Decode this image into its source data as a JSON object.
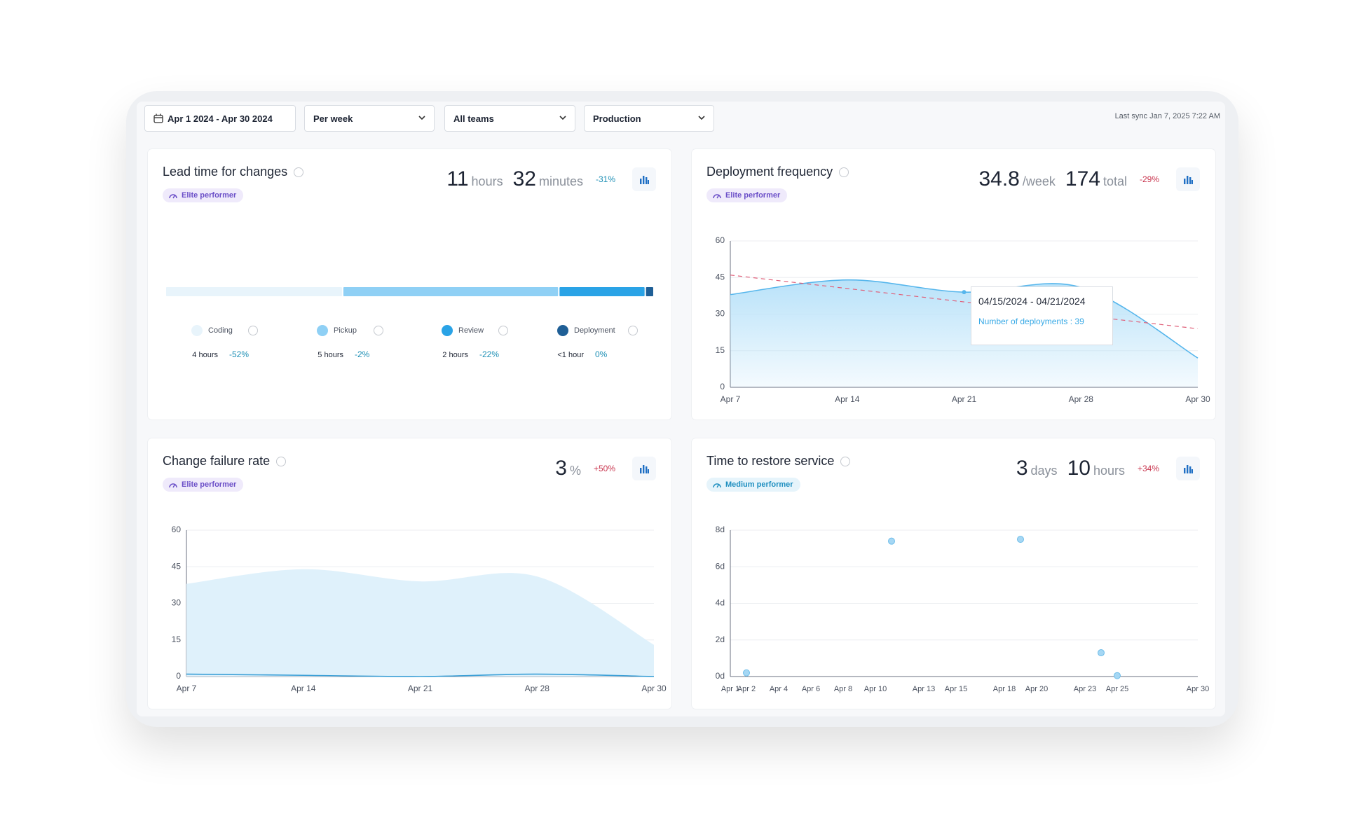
{
  "toolbar": {
    "date_range": "Apr 1 2024 - Apr 30 2024",
    "filters": [
      "Per week",
      "All teams",
      "Production"
    ],
    "last_sync": "Last sync Jan 7, 2025 7:22 AM"
  },
  "panels": [
    {
      "title": "Lead time for changes",
      "badge": "Elite performer",
      "badge_color": "#6b4fc8",
      "badge_bg": "#efeafb",
      "stats": [
        {
          "value": "11",
          "unit": "hours"
        },
        {
          "value": "32",
          "unit": "minutes"
        }
      ],
      "change": "-31%",
      "change_color": "#1d8fb5",
      "chart_data": {
        "type": "stacked-bar",
        "series": [
          {
            "name": "Coding",
            "color": "#e8f4fb",
            "values": [
              4.1
            ],
            "value_labels": [
              "4 hours"
            ],
            "change": "-52%"
          },
          {
            "name": "Pickup",
            "color": "#8fd0f5",
            "values": [
              5
            ],
            "value_labels": [
              "5 hours"
            ],
            "change": "-2%"
          },
          {
            "name": "Review",
            "color": "#2aa3e6",
            "values": [
              2
            ],
            "value_labels": [
              "2 hours"
            ],
            "change": "-22%"
          },
          {
            "name": "Deployment",
            "color": "#1f5f96",
            "values": [
              0.2
            ],
            "value_labels": [
              "<1 hour"
            ],
            "change": "0%"
          }
        ]
      }
    },
    {
      "title": "Deployment frequency",
      "badge": "Elite performer",
      "badge_color": "#6b4fc8",
      "badge_bg": "#efeafb",
      "stats": [
        {
          "value": "34.8",
          "unit": "/week"
        },
        {
          "value": "174",
          "unit": "total"
        }
      ],
      "change": "-29%",
      "change_color": "#c9364f",
      "chart_data": {
        "type": "area",
        "categories": [
          "Apr 7",
          "Apr 14",
          "Apr 21",
          "Apr 28",
          "Apr 30"
        ],
        "series": [
          {
            "color": "#56b6ec",
            "fill": "#b9e2f9",
            "values": [
              38,
              44,
              39,
              41,
              12
            ]
          }
        ],
        "trend": {
          "color": "#e0607a",
          "values": [
            46,
            24
          ]
        },
        "ylim": [
          0,
          60
        ],
        "yticks": [
          0,
          15,
          30,
          45,
          60
        ],
        "grid": true,
        "tooltip": {
          "title": "04/15/2024 - 04/21/2024",
          "text": "Number of deployments : 39"
        }
      }
    },
    {
      "title": "Change failure rate",
      "badge": "Elite performer",
      "badge_color": "#6b4fc8",
      "badge_bg": "#efeafb",
      "stats": [
        {
          "value": "3",
          "unit": "%"
        }
      ],
      "change": "+50%",
      "change_color": "#c9364f",
      "chart_data": {
        "type": "area",
        "categories": [
          "Apr 7",
          "Apr 14",
          "Apr 21",
          "Apr 28",
          "Apr 30"
        ],
        "series": [
          {
            "fill": "#dff1fb",
            "values": [
              38,
              44,
              39,
              41,
              13
            ]
          },
          {
            "color": "#3a9fd6",
            "values": [
              1,
              0.5,
              0,
              1,
              0
            ]
          }
        ],
        "ylim": [
          0,
          60
        ],
        "yticks": [
          0,
          15,
          30,
          45,
          60
        ],
        "grid": true
      }
    },
    {
      "title": "Time to restore service",
      "badge": "Medium performer",
      "badge_color": "#1f8fc0",
      "badge_bg": "#e6f4fb",
      "stats": [
        {
          "value": "3",
          "unit": "days"
        },
        {
          "value": "10",
          "unit": "hours"
        }
      ],
      "change": "+34%",
      "change_color": "#c9364f",
      "chart_data": {
        "type": "scatter",
        "color": "#a5d7f4",
        "x": [
          2,
          11,
          19,
          24,
          25
        ],
        "values": [
          0.2,
          7.4,
          7.5,
          1.3,
          0.05
        ],
        "xlim": [
          1,
          30
        ],
        "xticks": [
          {
            "value": 1,
            "label": "Apr 1"
          },
          {
            "value": 2,
            "label": "Apr 2"
          },
          {
            "value": 4,
            "label": "Apr 4"
          },
          {
            "value": 6,
            "label": "Apr 6"
          },
          {
            "value": 8,
            "label": "Apr 8"
          },
          {
            "value": 10,
            "label": "Apr 10"
          },
          {
            "value": 13,
            "label": "Apr 13"
          },
          {
            "value": 15,
            "label": "Apr 15"
          },
          {
            "value": 18,
            "label": "Apr 18"
          },
          {
            "value": 20,
            "label": "Apr 20"
          },
          {
            "value": 23,
            "label": "Apr 23"
          },
          {
            "value": 25,
            "label": "Apr 25"
          },
          {
            "value": 30,
            "label": "Apr 30"
          }
        ],
        "ylim": [
          0,
          8
        ],
        "yticks": [
          {
            "value": 0,
            "label": "0d"
          },
          {
            "value": 2,
            "label": "2d"
          },
          {
            "value": 4,
            "label": "4d"
          },
          {
            "value": 6,
            "label": "6d"
          },
          {
            "value": 8,
            "label": "8d"
          }
        ],
        "grid": true
      }
    }
  ]
}
